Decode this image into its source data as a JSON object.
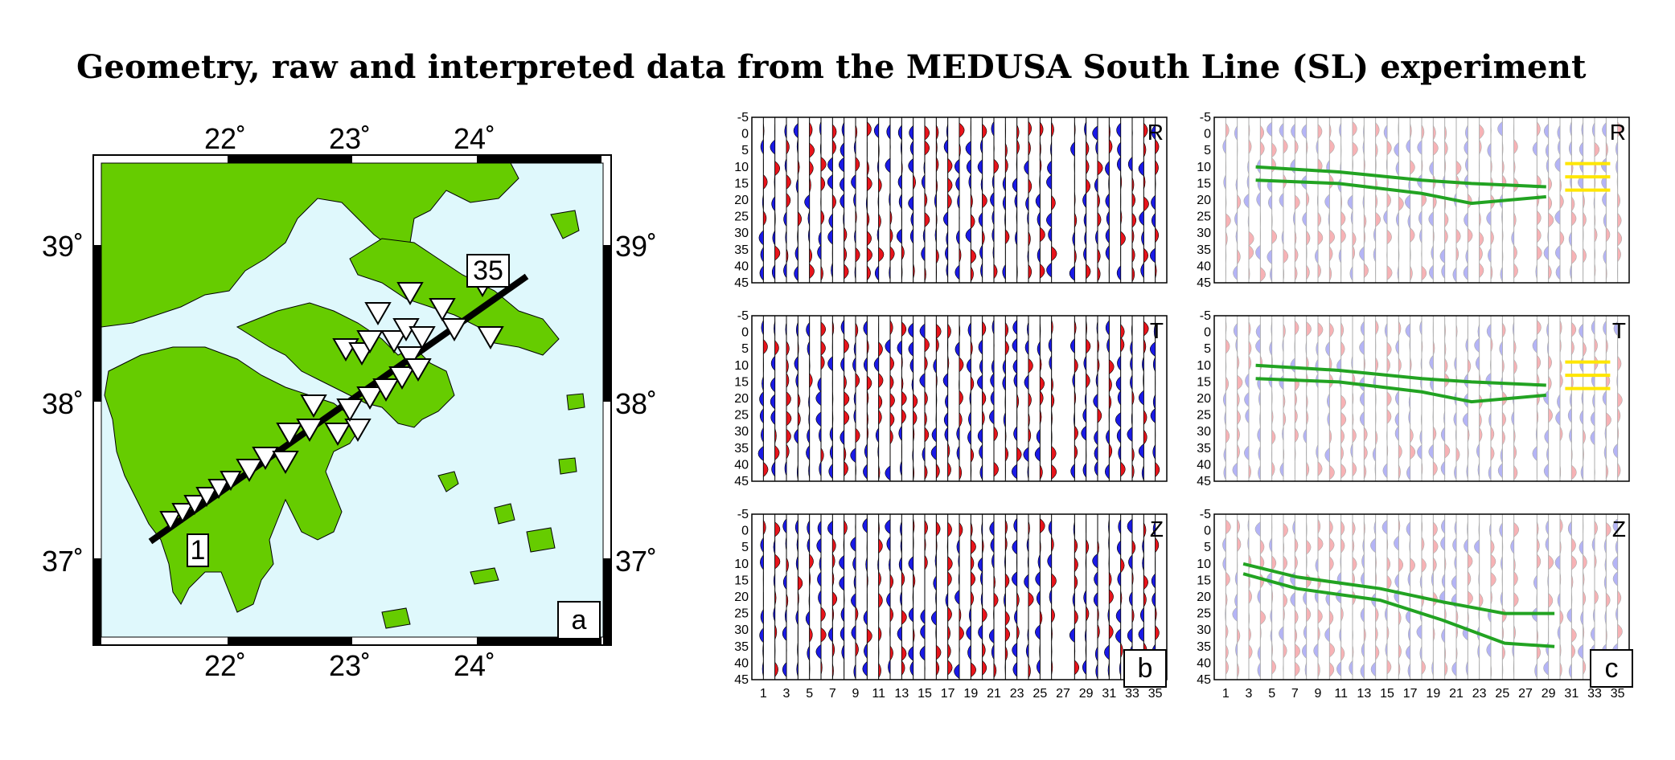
{
  "title": "Geometry, raw and interpreted data from the MEDUSA South Line (SL) experiment",
  "map": {
    "panel_label": "a",
    "lon_labels": [
      "22˚",
      "23˚",
      "24˚"
    ],
    "lat_labels": [
      "39˚",
      "38˚",
      "37˚"
    ],
    "lat_labels_right": [
      "39˚",
      "38˚",
      "37˚"
    ],
    "station_first": "1",
    "station_last": "35",
    "colors": {
      "land": "#66cc00",
      "sea": "#dff8fc",
      "line": "#000000"
    }
  },
  "sections": {
    "depth_ticks": [
      "-5",
      "0",
      "5",
      "10",
      "15",
      "20",
      "25",
      "30",
      "35",
      "40",
      "45"
    ],
    "station_ticks": [
      "1",
      "3",
      "5",
      "7",
      "9",
      "11",
      "13",
      "15",
      "17",
      "19",
      "21",
      "23",
      "25",
      "27",
      "29",
      "31",
      "33",
      "35"
    ],
    "components": [
      "R",
      "T",
      "Z"
    ],
    "panel_b_label": "b",
    "panel_c_label": "c",
    "colors": {
      "positive": "#e8141b",
      "negative": "#1a1ae6",
      "interp_line": "#22a322",
      "interp_line_alt": "#ffe600"
    }
  }
}
